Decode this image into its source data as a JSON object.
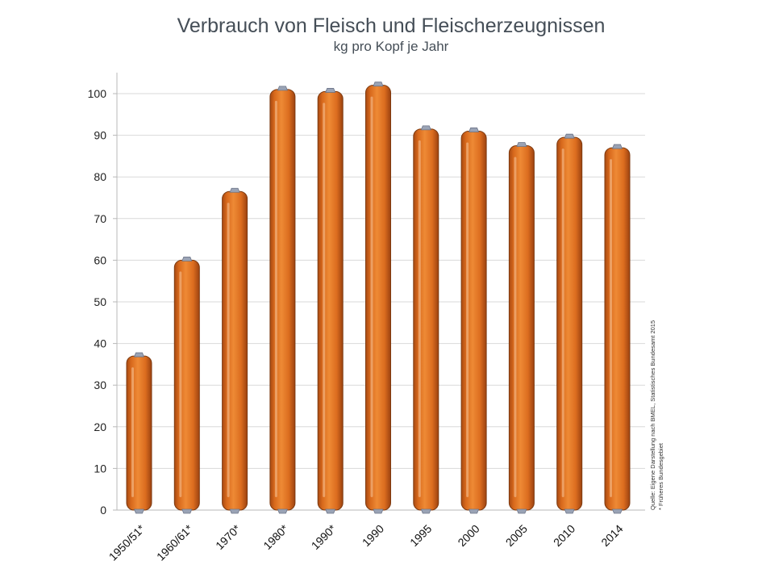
{
  "chart_data": {
    "type": "bar",
    "title": "Verbrauch von Fleisch und Fleischerzeugnissen",
    "subtitle": "kg pro Kopf je Jahr",
    "categories": [
      "1950/51*",
      "1960/61*",
      "1970*",
      "1980*",
      "1990*",
      "1990",
      "1995",
      "2000",
      "2005",
      "2010",
      "2014"
    ],
    "values": [
      37,
      60,
      76.5,
      101,
      100.5,
      102,
      91.5,
      91,
      87.5,
      89.5,
      87
    ],
    "ylim": [
      0,
      100
    ],
    "yticks": [
      0,
      10,
      20,
      30,
      40,
      50,
      60,
      70,
      80,
      90,
      100
    ],
    "grid": true,
    "bar_color": "#e07a22",
    "note_source": "Quelle: Eigene Darstellung nach BMEL, Statistisches Bundesamt 2015",
    "note_footnote": "* Früheres Bundesgebiet"
  }
}
